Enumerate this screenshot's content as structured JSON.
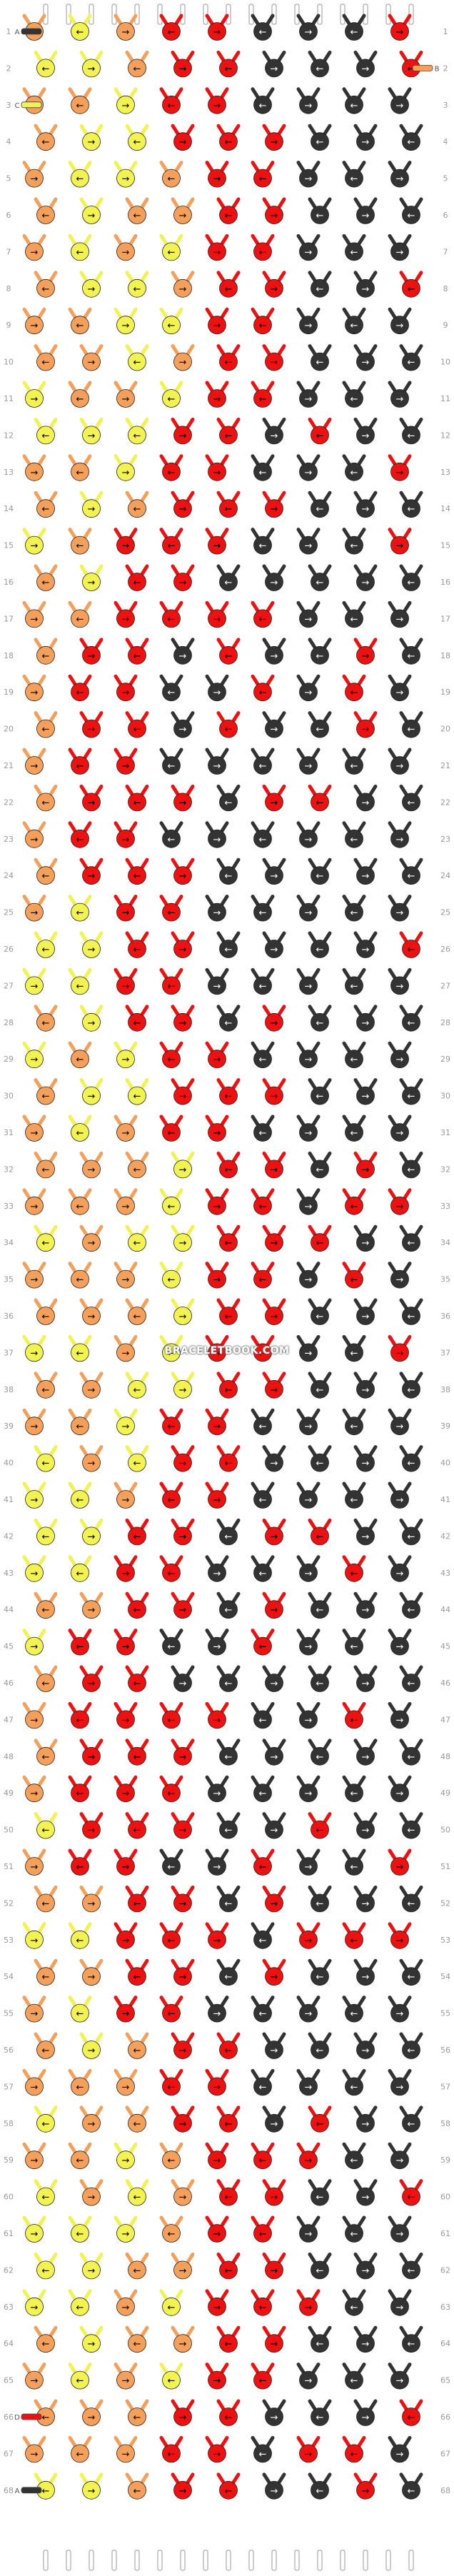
{
  "watermark": "BRACELETBOOK.COM",
  "pattern": {
    "rows": 68,
    "columns": 9,
    "string_ends": 20,
    "row_labels": [
      "1",
      "2",
      "3",
      "4",
      "5",
      "6",
      "7",
      "8",
      "9",
      "10",
      "11",
      "12",
      "13",
      "14",
      "15",
      "16",
      "17",
      "18",
      "19",
      "20",
      "21",
      "22",
      "23",
      "24",
      "25",
      "26",
      "27",
      "28",
      "29",
      "30",
      "31",
      "32",
      "33",
      "34",
      "35",
      "36",
      "37",
      "38",
      "39",
      "40",
      "41",
      "42",
      "43",
      "44",
      "45",
      "46",
      "47",
      "48",
      "49",
      "50",
      "51",
      "52",
      "53",
      "54",
      "55",
      "56",
      "57",
      "58",
      "59",
      "60",
      "61",
      "62",
      "63",
      "64",
      "65",
      "66",
      "67",
      "68"
    ],
    "thread_colors": {
      "A": "#333333",
      "B": "#f5a05a",
      "C": "#f2f251",
      "D": "#ee1111"
    },
    "left_tags": [
      {
        "row": "1",
        "letter": "A",
        "color": "#333333"
      },
      {
        "row": "3",
        "letter": "C",
        "color": "#f2f251"
      },
      {
        "row": "66",
        "letter": "D",
        "color": "#ee1111"
      },
      {
        "row": "68",
        "letter": "A",
        "color": "#333333"
      }
    ],
    "right_tags": [
      {
        "row": "2",
        "letter": "B",
        "color": "#f5a05a"
      }
    ],
    "knot_palette": [
      "#ee1111",
      "#333333",
      "#f5a05a",
      "#f2f251"
    ],
    "knot_directions": [
      "→",
      "←",
      "↘",
      "↙",
      "↗",
      "↖"
    ]
  }
}
